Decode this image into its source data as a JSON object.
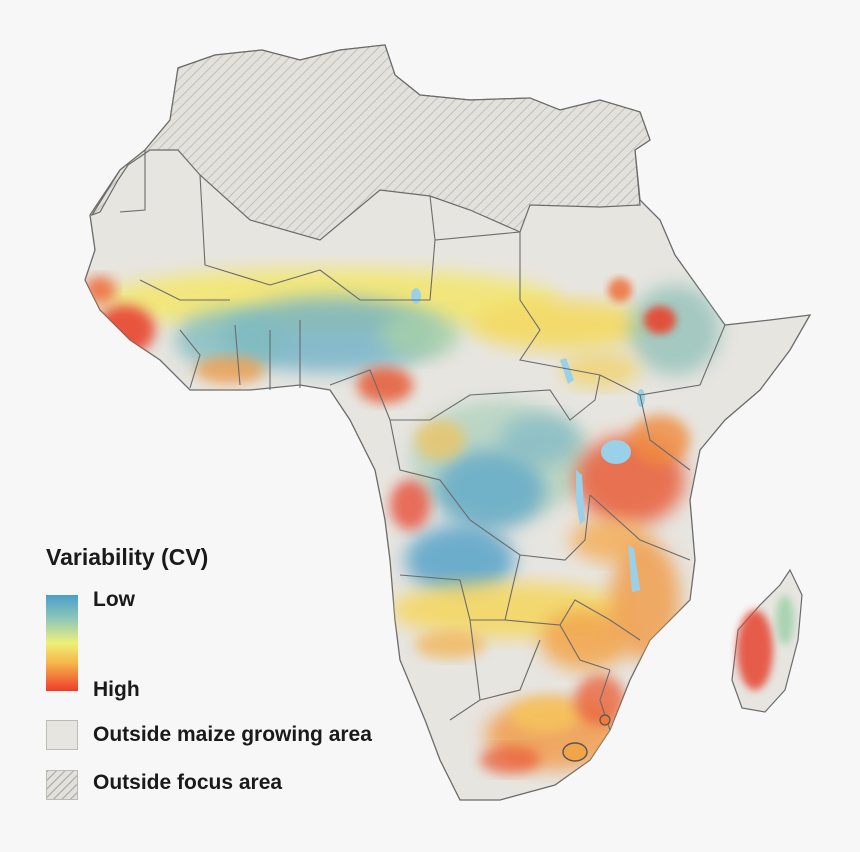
{
  "legend": {
    "title": "Variability (CV)",
    "ramp_low_label": "Low",
    "ramp_high_label": "High",
    "outside_maize_label": "Outside maize growing area",
    "outside_focus_label": "Outside focus area"
  },
  "colors": {
    "background": "#f7f7f7",
    "land": "#e7e5e0",
    "border": "#6b6b6b",
    "water": "#9ad0e8",
    "cv_low": "#4a9fc9",
    "cv_mid": "#eef07a",
    "cv_high": "#ee3b2b"
  }
}
